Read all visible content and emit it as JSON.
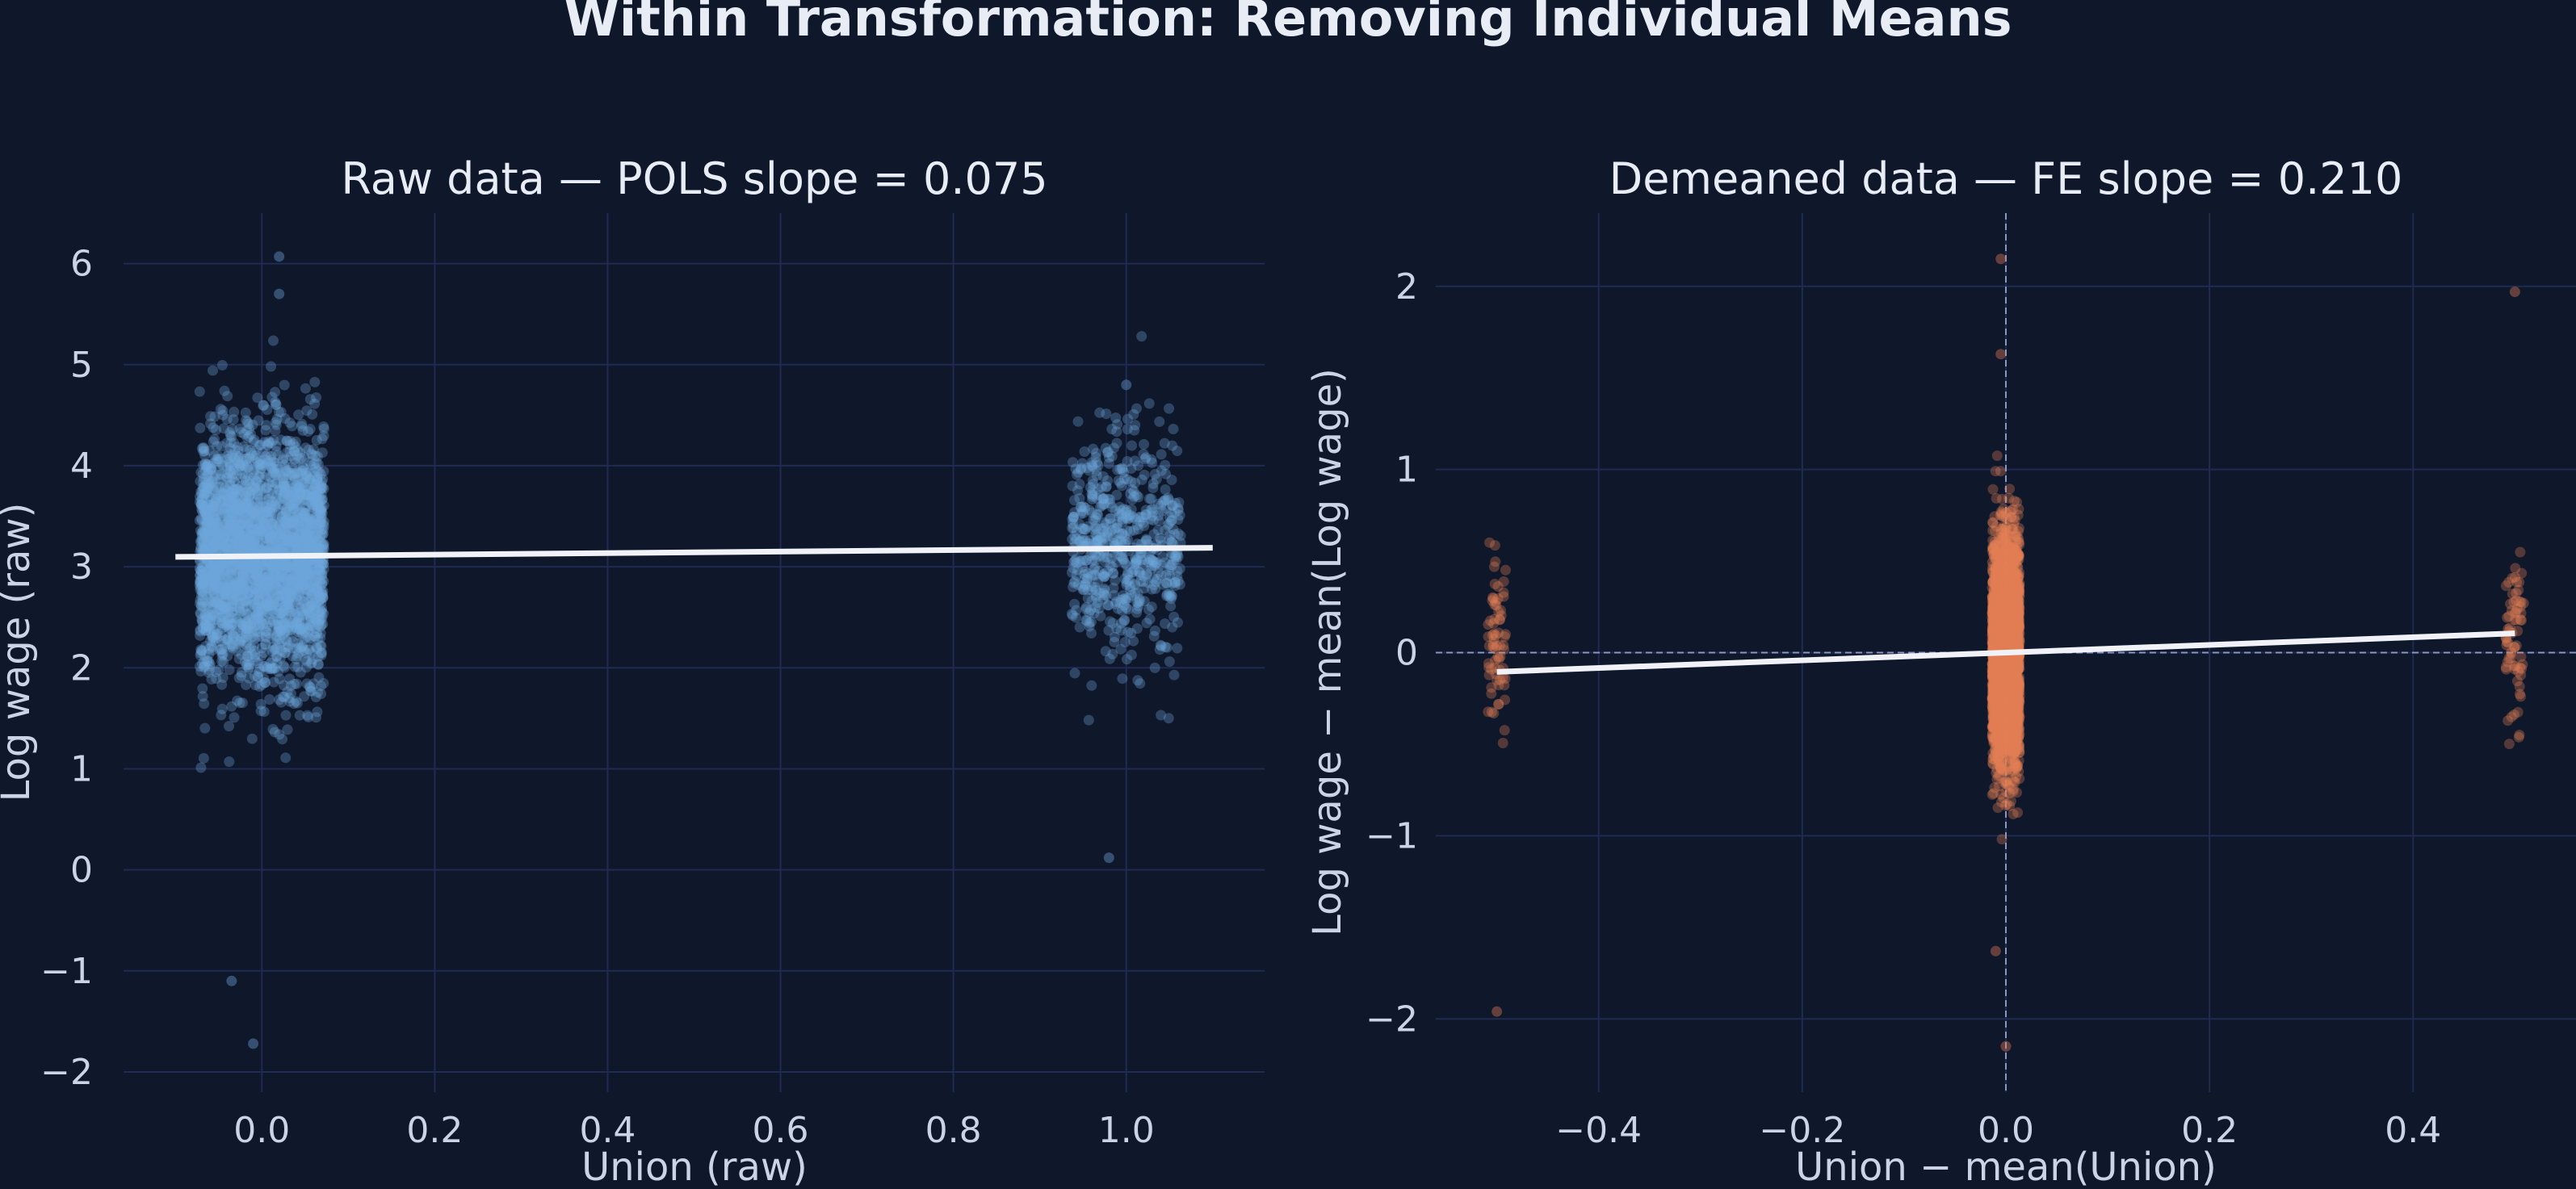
{
  "title": "Within Transformation: Removing Individual Means",
  "colors": {
    "background": "#0f172a",
    "grid": "#1f2b52",
    "raw_points": "#6ea7dc",
    "demeaned_points": "#e57e55",
    "fit_line": "#f0f2f7",
    "zero_lines": "#8a97c4"
  },
  "chart_data": [
    {
      "type": "scatter",
      "title": "Raw data — POLS slope = 0.075",
      "xlabel": "Union (raw)",
      "ylabel": "Log wage (raw)",
      "xlim": [
        -0.16,
        1.16
      ],
      "ylim": [
        -2.2,
        6.5
      ],
      "xticks": [
        "0.0",
        "0.2",
        "0.4",
        "0.6",
        "0.8",
        "1.0"
      ],
      "yticks": [
        "−2",
        "−1",
        "0",
        "1",
        "2",
        "3",
        "4",
        "5",
        "6"
      ],
      "grid": true,
      "clusters": [
        {
          "x": 0,
          "x_jitter": 0.08,
          "y_mean": 3.1,
          "y_sd": 0.6,
          "n": 3000
        },
        {
          "x": 1,
          "x_jitter": 0.07,
          "y_mean": 3.2,
          "y_sd": 0.55,
          "n": 600
        }
      ],
      "outliers": [
        [
          -0.035,
          -1.1
        ],
        [
          -0.01,
          -1.72
        ],
        [
          0.02,
          6.07
        ],
        [
          0.02,
          5.7
        ],
        [
          0.98,
          0.12
        ],
        [
          1.0,
          4.8
        ]
      ],
      "fit_line": {
        "slope": 0.075,
        "intercept": 3.105,
        "x_range": [
          -0.1,
          1.1
        ]
      }
    },
    {
      "type": "scatter",
      "title": "Demeaned data — FE slope = 0.210",
      "xlabel": "Union − mean(Union)",
      "ylabel": "Log wage − mean(Log wage)",
      "xlim": [
        -0.56,
        0.56
      ],
      "ylim": [
        -2.4,
        2.4
      ],
      "xticks": [
        "−0.4",
        "−0.2",
        "0.0",
        "0.2",
        "0.4"
      ],
      "yticks": [
        "−2",
        "−1",
        "0",
        "1",
        "2"
      ],
      "grid": true,
      "reference_lines": {
        "x": 0,
        "y": 0,
        "style": "dashed"
      },
      "clusters": [
        {
          "x": 0,
          "x_jitter": 0.015,
          "y_mean": 0,
          "y_sd": 0.3,
          "n": 3000
        },
        {
          "x": -0.5,
          "x_jitter": 0.01,
          "y_mean": 0,
          "y_sd": 0.25,
          "n": 70
        },
        {
          "x": 0.5,
          "x_jitter": 0.01,
          "y_mean": 0.05,
          "y_sd": 0.25,
          "n": 70
        }
      ],
      "outliers": [
        [
          -0.005,
          2.15
        ],
        [
          0.5,
          1.97
        ],
        [
          -0.5,
          -1.96
        ],
        [
          0.0,
          -2.15
        ],
        [
          -0.01,
          -1.63
        ],
        [
          -0.005,
          1.63
        ]
      ],
      "fit_line": {
        "slope": 0.21,
        "intercept": 0.0,
        "x_range": [
          -0.5,
          0.5
        ]
      }
    }
  ]
}
